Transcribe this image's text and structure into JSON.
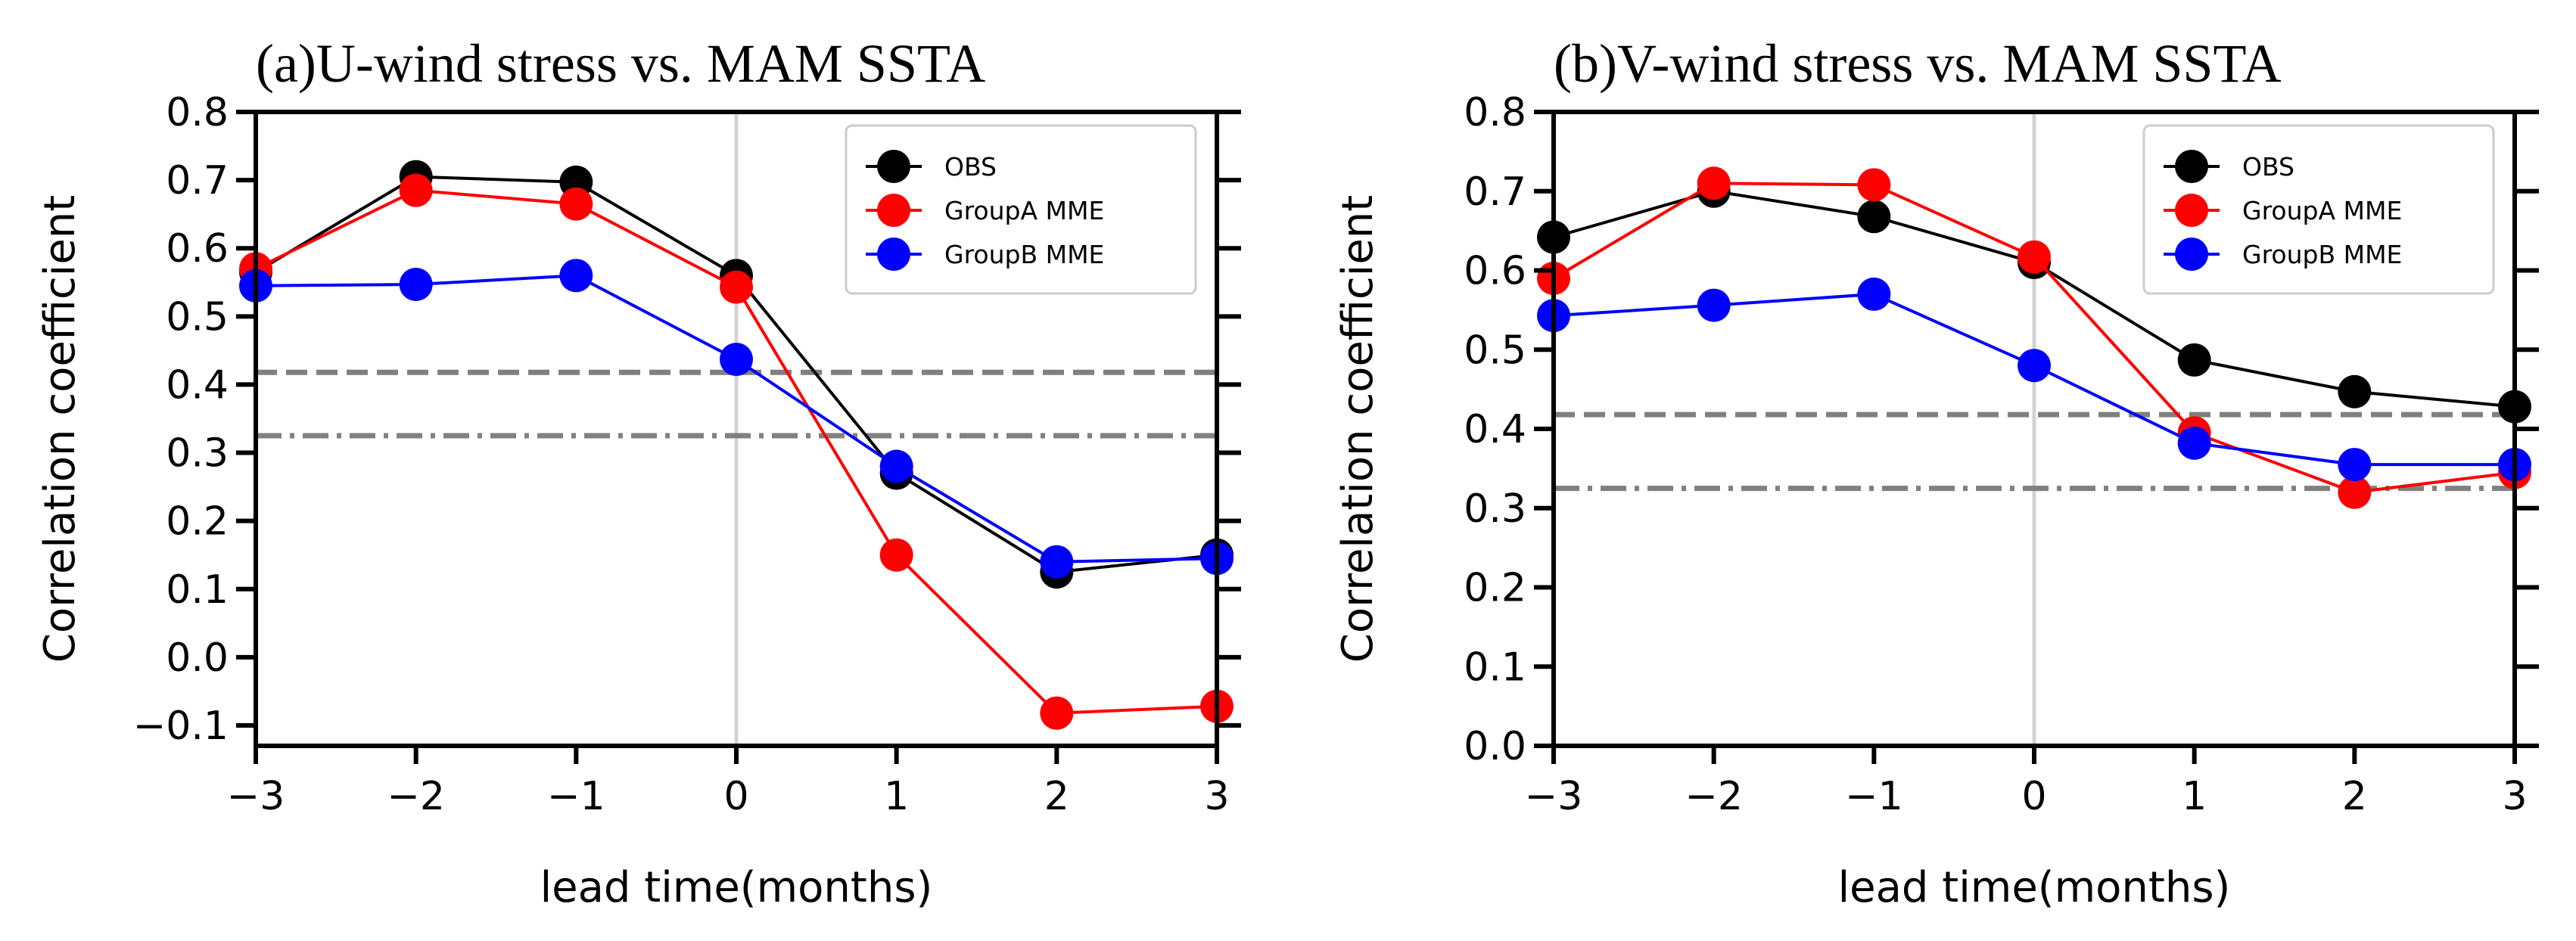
{
  "chart_data": [
    {
      "type": "line",
      "title": "(a)U-wind stress vs. MAM SSTA",
      "xlabel": "lead time(months)",
      "ylabel": "Correlation coefficient",
      "x": [
        -3,
        -2,
        -1,
        0,
        1,
        2,
        3
      ],
      "xlim": [
        -3,
        3
      ],
      "ylim": [
        -0.13,
        0.8
      ],
      "xticks": [
        -3,
        -2,
        -1,
        0,
        1,
        2,
        3
      ],
      "xtick_labels": [
        "−3",
        "−2",
        "−1",
        "0",
        "1",
        "2",
        "3"
      ],
      "yticks": [
        -0.1,
        0.0,
        0.1,
        0.2,
        0.3,
        0.4,
        0.5,
        0.6,
        0.7,
        0.8
      ],
      "ytick_labels": [
        "−0.1",
        "0.0",
        "0.1",
        "0.2",
        "0.3",
        "0.4",
        "0.5",
        "0.6",
        "0.7",
        "0.8"
      ],
      "series": [
        {
          "name": "OBS",
          "color": "#000000",
          "values": [
            0.565,
            0.705,
            0.697,
            0.56,
            0.27,
            0.125,
            0.15
          ]
        },
        {
          "name": "GroupA MME",
          "color": "#ff0000",
          "values": [
            0.57,
            0.685,
            0.665,
            0.543,
            0.15,
            -0.082,
            -0.072
          ]
        },
        {
          "name": "GroupB MME",
          "color": "#0000ff",
          "values": [
            0.545,
            0.547,
            0.56,
            0.437,
            0.28,
            0.14,
            0.145
          ]
        }
      ],
      "hlines": [
        {
          "y": 0.418,
          "style": "dashed",
          "color": "#808080"
        },
        {
          "y": 0.325,
          "style": "dashdot",
          "color": "#808080"
        }
      ],
      "vline": {
        "x": 0,
        "color": "#d3d3d3"
      },
      "legend_position": "top-right",
      "grid": false
    },
    {
      "type": "line",
      "title": "(b)V-wind stress vs. MAM SSTA",
      "xlabel": "lead time(months)",
      "ylabel": "Correlation coefficient",
      "x": [
        -3,
        -2,
        -1,
        0,
        1,
        2,
        3
      ],
      "xlim": [
        -3,
        3
      ],
      "ylim": [
        0.0,
        0.8
      ],
      "xticks": [
        -3,
        -2,
        -1,
        0,
        1,
        2,
        3
      ],
      "xtick_labels": [
        "−3",
        "−2",
        "−1",
        "0",
        "1",
        "2",
        "3"
      ],
      "yticks": [
        0.0,
        0.1,
        0.2,
        0.3,
        0.4,
        0.5,
        0.6,
        0.7,
        0.8
      ],
      "ytick_labels": [
        "0.0",
        "0.1",
        "0.2",
        "0.3",
        "0.4",
        "0.5",
        "0.6",
        "0.7",
        "0.8"
      ],
      "series": [
        {
          "name": "OBS",
          "color": "#000000",
          "values": [
            0.642,
            0.7,
            0.668,
            0.61,
            0.487,
            0.447,
            0.428
          ]
        },
        {
          "name": "GroupA MME",
          "color": "#ff0000",
          "values": [
            0.59,
            0.71,
            0.708,
            0.617,
            0.395,
            0.32,
            0.345
          ]
        },
        {
          "name": "GroupB MME",
          "color": "#0000ff",
          "values": [
            0.543,
            0.556,
            0.57,
            0.48,
            0.382,
            0.355,
            0.355
          ]
        }
      ],
      "hlines": [
        {
          "y": 0.418,
          "style": "dashed",
          "color": "#808080"
        },
        {
          "y": 0.325,
          "style": "dashdot",
          "color": "#808080"
        }
      ],
      "vline": {
        "x": 0,
        "color": "#d3d3d3"
      },
      "legend_position": "top-right",
      "grid": false
    }
  ]
}
